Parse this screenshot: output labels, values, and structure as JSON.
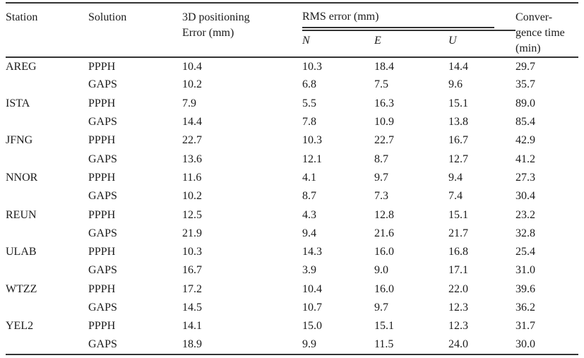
{
  "colors": {
    "text": "#1b1b1b",
    "rule": "#333333",
    "bg": "#ffffff"
  },
  "table": {
    "header": {
      "station": "Station",
      "solution": "Solution",
      "error3d_lines": [
        "3D positioning",
        "Error (mm)"
      ],
      "rms_group": "RMS error (mm)",
      "rms_sub": {
        "n": "N",
        "e": "E",
        "u": "U"
      },
      "convergence_lines": [
        "Conver-",
        "gence time",
        "(min)"
      ]
    },
    "rows": [
      {
        "station": "AREG",
        "solution": "PPPH",
        "error3d": "10.4",
        "n": "10.3",
        "e": "18.4",
        "u": "14.4",
        "convergence": "29.7"
      },
      {
        "station": "",
        "solution": "GAPS",
        "error3d": "10.2",
        "n": "6.8",
        "e": "7.5",
        "u": "9.6",
        "convergence": "35.7"
      },
      {
        "station": "ISTA",
        "solution": "PPPH",
        "error3d": "7.9",
        "n": "5.5",
        "e": "16.3",
        "u": "15.1",
        "convergence": "89.0"
      },
      {
        "station": "",
        "solution": "GAPS",
        "error3d": "14.4",
        "n": "7.8",
        "e": "10.9",
        "u": "13.8",
        "convergence": "85.4"
      },
      {
        "station": "JFNG",
        "solution": "PPPH",
        "error3d": "22.7",
        "n": "10.3",
        "e": "22.7",
        "u": "16.7",
        "convergence": "42.9"
      },
      {
        "station": "",
        "solution": "GAPS",
        "error3d": "13.6",
        "n": "12.1",
        "e": "8.7",
        "u": "12.7",
        "convergence": "41.2"
      },
      {
        "station": "NNOR",
        "solution": "PPPH",
        "error3d": "11.6",
        "n": "4.1",
        "e": "9.7",
        "u": "9.4",
        "convergence": "27.3"
      },
      {
        "station": "",
        "solution": "GAPS",
        "error3d": "10.2",
        "n": "8.7",
        "e": "7.3",
        "u": "7.4",
        "convergence": "30.4"
      },
      {
        "station": "REUN",
        "solution": "PPPH",
        "error3d": "12.5",
        "n": "4.3",
        "e": "12.8",
        "u": "15.1",
        "convergence": "23.2"
      },
      {
        "station": "",
        "solution": "GAPS",
        "error3d": "21.9",
        "n": "9.4",
        "e": "21.6",
        "u": "21.7",
        "convergence": "32.8"
      },
      {
        "station": "ULAB",
        "solution": "PPPH",
        "error3d": "10.3",
        "n": "14.3",
        "e": "16.0",
        "u": "16.8",
        "convergence": "25.4"
      },
      {
        "station": "",
        "solution": "GAPS",
        "error3d": "16.7",
        "n": "3.9",
        "e": "9.0",
        "u": "17.1",
        "convergence": "31.0"
      },
      {
        "station": "WTZZ",
        "solution": "PPPH",
        "error3d": "17.2",
        "n": "10.4",
        "e": "16.0",
        "u": "22.0",
        "convergence": "39.6"
      },
      {
        "station": "",
        "solution": "GAPS",
        "error3d": "14.5",
        "n": "10.7",
        "e": "9.7",
        "u": "12.3",
        "convergence": "36.2"
      },
      {
        "station": "YEL2",
        "solution": "PPPH",
        "error3d": "14.1",
        "n": "15.0",
        "e": "15.1",
        "u": "12.3",
        "convergence": "31.7"
      },
      {
        "station": "",
        "solution": "GAPS",
        "error3d": "18.9",
        "n": "9.9",
        "e": "11.5",
        "u": "24.0",
        "convergence": "30.0"
      }
    ]
  }
}
